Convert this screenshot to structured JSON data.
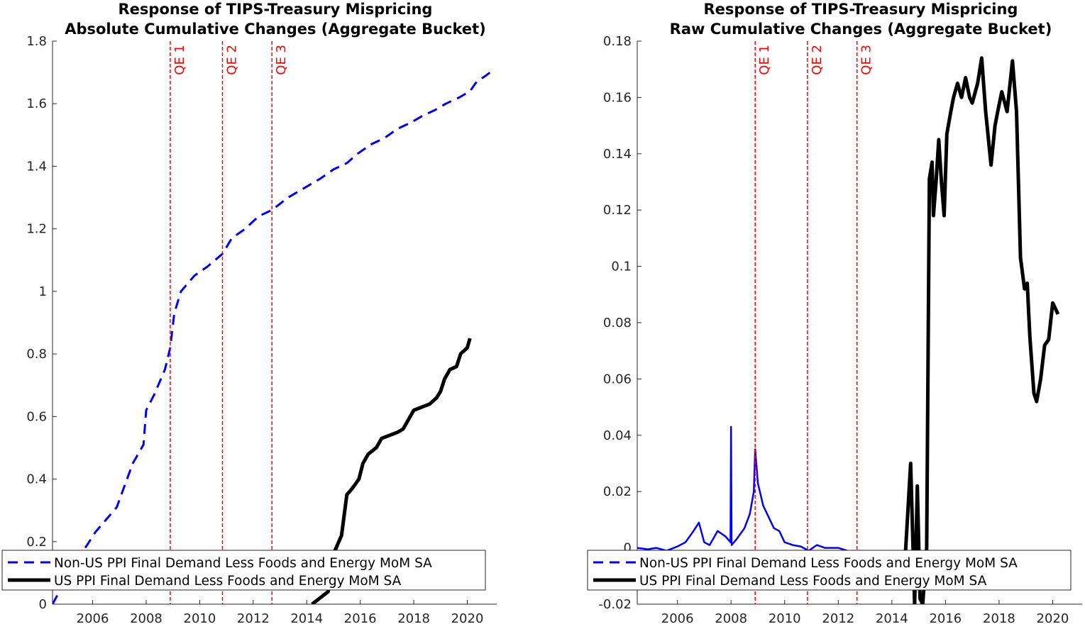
{
  "charts": [
    {
      "title_lines": [
        "Response of TIPS-Treasury Mispricing",
        "Absolute Cumulative Changes (Aggregate Bucket)"
      ],
      "xlim": [
        2004.5,
        2021.1
      ],
      "ylim": [
        0,
        1.8
      ],
      "xticks": [
        2006,
        2008,
        2010,
        2012,
        2014,
        2016,
        2018,
        2020
      ],
      "xtick_labels": [
        "2006",
        "2008",
        "2010",
        "2012",
        "2014",
        "2016",
        "2018",
        "2020"
      ],
      "yticks": [
        0,
        0.2,
        0.4,
        0.6,
        0.8,
        1,
        1.2,
        1.4,
        1.6,
        1.8
      ],
      "ytick_labels": [
        "0",
        "0.2",
        "0.4",
        "0.6",
        "0.8",
        "1",
        "1.2",
        "1.4",
        "1.6",
        "1.8"
      ]
    },
    {
      "title_lines": [
        "Response of TIPS-Treasury Mispricing",
        "Raw Cumulative Changes (Aggregate Bucket)"
      ],
      "xlim": [
        2004.5,
        2021.1
      ],
      "ylim": [
        -0.02,
        0.18
      ],
      "xticks": [
        2006,
        2008,
        2010,
        2012,
        2014,
        2016,
        2018,
        2020
      ],
      "xtick_labels": [
        "2006",
        "2008",
        "2010",
        "2012",
        "2014",
        "2016",
        "2018",
        "2020"
      ],
      "yticks": [
        -0.02,
        0,
        0.02,
        0.04,
        0.06,
        0.08,
        0.1,
        0.12,
        0.14,
        0.16,
        0.18
      ],
      "ytick_labels": [
        "-0.02",
        "0",
        "0.02",
        "0.04",
        "0.06",
        "0.08",
        "0.1",
        "0.12",
        "0.14",
        "0.16",
        "0.18"
      ]
    }
  ],
  "qe_lines": [
    {
      "label": "QE 1",
      "x": 2008.9
    },
    {
      "label": "QE 2",
      "x": 2010.85
    },
    {
      "label": "QE 3",
      "x": 2012.7
    }
  ],
  "legend": [
    {
      "label": "Non-US PPI Final Demand Less Foods and Energy MoM SA",
      "style": "dashed",
      "color": "#0000ff"
    },
    {
      "label": "US PPI Final Demand Less Foods and Energy MoM SA",
      "style": "solid",
      "color": "#000000"
    }
  ],
  "colors": {
    "non_us": "#0000ff",
    "us": "#000000",
    "qe": "#ff0000",
    "axis": "#262626"
  },
  "chart_data": [
    {
      "type": "line",
      "title": "Response of TIPS-Treasury Mispricing Absolute Cumulative Changes (Aggregate Bucket)",
      "xlim": [
        2004.5,
        2021.1
      ],
      "ylim": [
        0,
        1.8
      ],
      "series": [
        {
          "name": "Non-US PPI Final Demand Less Foods and Energy MoM SA",
          "x": [
            2004.5,
            2005.0,
            2005.4,
            2005.8,
            2006.1,
            2006.5,
            2006.9,
            2007.2,
            2007.5,
            2007.9,
            2008.0,
            2008.3,
            2008.7,
            2008.9,
            2009.05,
            2009.3,
            2009.8,
            2010.3,
            2010.85,
            2011.2,
            2011.7,
            2012.2,
            2012.7,
            2013.3,
            2013.9,
            2014.5,
            2015.0,
            2015.5,
            2015.9,
            2016.4,
            2016.9,
            2017.4,
            2017.9,
            2018.3,
            2018.8,
            2019.2,
            2019.7,
            2020.1,
            2020.35,
            2020.7,
            2021.0
          ],
          "y": [
            0,
            0.08,
            0.14,
            0.19,
            0.23,
            0.27,
            0.31,
            0.38,
            0.45,
            0.51,
            0.62,
            0.67,
            0.75,
            0.82,
            0.93,
            1.0,
            1.05,
            1.08,
            1.12,
            1.17,
            1.2,
            1.24,
            1.26,
            1.3,
            1.33,
            1.36,
            1.39,
            1.41,
            1.44,
            1.47,
            1.49,
            1.52,
            1.54,
            1.56,
            1.58,
            1.6,
            1.62,
            1.64,
            1.67,
            1.69,
            1.71
          ]
        },
        {
          "name": "US PPI Final Demand Less Foods and Energy MoM SA",
          "x": [
            2014.2,
            2014.5,
            2014.8,
            2014.95,
            2015.05,
            2015.1,
            2015.2,
            2015.3,
            2015.5,
            2015.7,
            2015.95,
            2016.1,
            2016.3,
            2016.6,
            2016.8,
            2017.1,
            2017.4,
            2017.6,
            2017.8,
            2018.0,
            2018.3,
            2018.6,
            2018.85,
            2019.0,
            2019.15,
            2019.35,
            2019.6,
            2019.75,
            2020.0,
            2020.1
          ],
          "y": [
            0.0,
            0.02,
            0.04,
            0.12,
            0.17,
            0.18,
            0.2,
            0.22,
            0.35,
            0.37,
            0.4,
            0.45,
            0.48,
            0.5,
            0.53,
            0.54,
            0.55,
            0.56,
            0.59,
            0.62,
            0.63,
            0.64,
            0.66,
            0.68,
            0.72,
            0.75,
            0.76,
            0.8,
            0.82,
            0.85
          ]
        }
      ]
    },
    {
      "type": "line",
      "title": "Response of TIPS-Treasury Mispricing Raw Cumulative Changes (Aggregate Bucket)",
      "xlim": [
        2004.5,
        2021.1
      ],
      "ylim": [
        -0.02,
        0.18
      ],
      "series": [
        {
          "name": "Non-US PPI Final Demand Less Foods and Energy MoM SA",
          "x": [
            2004.5,
            2004.9,
            2005.2,
            2005.6,
            2006.0,
            2006.3,
            2006.6,
            2006.8,
            2007.0,
            2007.2,
            2007.5,
            2007.8,
            2007.98,
            2008.0,
            2008.02,
            2008.2,
            2008.5,
            2008.7,
            2008.85,
            2008.9,
            2009.0,
            2009.2,
            2009.4,
            2009.6,
            2009.8,
            2010.0,
            2010.3,
            2010.6,
            2010.9,
            2011.2,
            2011.5,
            2012.0,
            2012.5,
            2013.0,
            2013.5,
            2014.0
          ],
          "y": [
            0,
            -0.0005,
            0.0,
            -0.001,
            0.0005,
            0.002,
            0.006,
            0.009,
            0.002,
            0.001,
            0.006,
            0.004,
            0.002,
            0.043,
            0.001,
            0.003,
            0.007,
            0.012,
            0.02,
            0.035,
            0.023,
            0.015,
            0.011,
            0.007,
            0.006,
            0.002,
            0.001,
            0.0005,
            -0.001,
            0.001,
            0.0,
            0.0,
            -0.0015,
            -0.002,
            -0.002,
            -0.001
          ]
        },
        {
          "name": "US PPI Final Demand Less Foods and Energy MoM SA",
          "x": [
            2014.2,
            2014.5,
            2014.7,
            2014.85,
            2014.95,
            2015.05,
            2015.15,
            2015.3,
            2015.4,
            2015.5,
            2015.55,
            2015.65,
            2015.75,
            2015.85,
            2015.95,
            2016.05,
            2016.2,
            2016.3,
            2016.45,
            2016.6,
            2016.75,
            2016.9,
            2017.0,
            2017.2,
            2017.35,
            2017.5,
            2017.7,
            2017.85,
            2017.95,
            2018.1,
            2018.3,
            2018.5,
            2018.65,
            2018.8,
            2018.95,
            2019.05,
            2019.15,
            2019.3,
            2019.4,
            2019.55,
            2019.7,
            2019.85,
            2020.0,
            2020.2
          ],
          "y": [
            -0.015,
            -0.003,
            0.03,
            -0.02,
            0.022,
            -0.018,
            -0.02,
            0.0,
            0.131,
            0.137,
            0.118,
            0.13,
            0.145,
            0.13,
            0.118,
            0.147,
            0.155,
            0.16,
            0.165,
            0.16,
            0.167,
            0.16,
            0.158,
            0.165,
            0.174,
            0.155,
            0.136,
            0.15,
            0.155,
            0.162,
            0.155,
            0.173,
            0.155,
            0.103,
            0.092,
            0.094,
            0.075,
            0.055,
            0.052,
            0.06,
            0.072,
            0.074,
            0.087,
            0.083
          ]
        }
      ]
    }
  ]
}
